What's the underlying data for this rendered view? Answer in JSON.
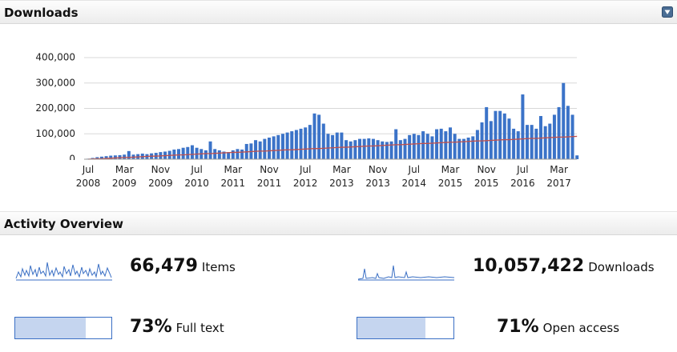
{
  "header": {
    "title": "Downloads"
  },
  "chart_data": {
    "type": "bar",
    "categories": [
      "Jul 2008",
      null,
      null,
      null,
      null,
      null,
      null,
      null,
      "Mar 2009",
      null,
      null,
      null,
      null,
      null,
      null,
      null,
      "Nov 2009",
      null,
      null,
      null,
      null,
      null,
      null,
      null,
      "Jul 2010",
      null,
      null,
      null,
      null,
      null,
      null,
      null,
      "Mar 2011",
      null,
      null,
      null,
      null,
      null,
      null,
      null,
      "Nov 2011",
      null,
      null,
      null,
      null,
      null,
      null,
      null,
      "Jul 2012",
      null,
      null,
      null,
      null,
      null,
      null,
      null,
      "Mar 2013",
      null,
      null,
      null,
      null,
      null,
      null,
      null,
      "Nov 2013",
      null,
      null,
      null,
      null,
      null,
      null,
      null,
      "Jul 2014",
      null,
      null,
      null,
      null,
      null,
      null,
      null,
      "Mar 2015",
      null,
      null,
      null,
      null,
      null,
      null,
      null,
      "Nov 2015",
      null,
      null,
      null,
      null,
      null,
      null,
      null,
      "Jul 2016",
      null,
      null,
      null,
      null,
      null,
      null,
      null,
      "Mar 2017",
      null,
      null,
      null,
      null
    ],
    "series": [
      {
        "color": "#3b73c8",
        "values": [
          2000,
          5000,
          8000,
          10000,
          12000,
          14000,
          15000,
          16000,
          18000,
          32000,
          18000,
          20000,
          22000,
          20000,
          23000,
          25000,
          28000,
          30000,
          33000,
          38000,
          40000,
          45000,
          48000,
          55000,
          45000,
          40000,
          35000,
          70000,
          40000,
          35000,
          30000,
          28000,
          35000,
          40000,
          38000,
          60000,
          62000,
          75000,
          70000,
          80000,
          85000,
          90000,
          95000,
          100000,
          105000,
          110000,
          115000,
          120000,
          125000,
          135000,
          180000,
          175000,
          140000,
          100000,
          95000,
          105000,
          105000,
          75000,
          70000,
          75000,
          80000,
          80000,
          82000,
          80000,
          75000,
          70000,
          68000,
          70000,
          118000,
          75000,
          80000,
          95000,
          100000,
          95000,
          110000,
          100000,
          90000,
          118000,
          120000,
          110000,
          125000,
          100000,
          80000,
          80000,
          85000,
          90000,
          115000,
          145000,
          205000,
          150000,
          190000,
          190000,
          180000,
          160000,
          120000,
          110000,
          255000,
          135000,
          135000,
          120000,
          170000,
          130000,
          140000,
          175000,
          205000,
          300000,
          210000,
          175000,
          15000
        ]
      },
      {
        "type": "line",
        "color": "#c0504d",
        "values": [
          0,
          1000,
          2000,
          2000,
          3000,
          4000,
          5000,
          6000,
          7000,
          7000,
          8000,
          9000,
          10000,
          11000,
          12000,
          12000,
          13000,
          14000,
          15000,
          16000,
          17000,
          17000,
          18000,
          19000,
          20000,
          21000,
          22000,
          22000,
          23000,
          24000,
          25000,
          26000,
          27000,
          27000,
          28000,
          29000,
          30000,
          31000,
          32000,
          32000,
          33000,
          34000,
          35000,
          36000,
          37000,
          37000,
          38000,
          39000,
          40000,
          41000,
          42000,
          42000,
          43000,
          44000,
          45000,
          46000,
          47000,
          47000,
          48000,
          49000,
          50000,
          51000,
          52000,
          52000,
          53000,
          54000,
          55000,
          56000,
          57000,
          57000,
          58000,
          59000,
          60000,
          61000,
          62000,
          62000,
          63000,
          64000,
          65000,
          66000,
          67000,
          67000,
          68000,
          69000,
          70000,
          71000,
          72000,
          72000,
          73000,
          74000,
          75000,
          76000,
          77000,
          77000,
          78000,
          79000,
          80000,
          81000,
          82000,
          82000,
          83000,
          84000,
          85000,
          86000,
          87000,
          87000,
          88000,
          89000,
          90000
        ]
      }
    ],
    "ylim": [
      0,
      400000
    ],
    "yticks": [
      0,
      {
        "value": 100000,
        "label": "100,000"
      },
      {
        "value": 200000,
        "label": "200,000"
      },
      {
        "value": 300000,
        "label": "300,000"
      },
      {
        "value": 400000,
        "label": "400,000"
      }
    ],
    "grid": true
  },
  "activity": {
    "title": "Activity Overview",
    "stats": [
      {
        "value": "66,479",
        "label": "Items"
      },
      {
        "value": "10,057,422",
        "label": "Downloads"
      },
      {
        "value": "73%",
        "label": "Full text"
      },
      {
        "value": "71%",
        "label": "Open access"
      }
    ]
  }
}
